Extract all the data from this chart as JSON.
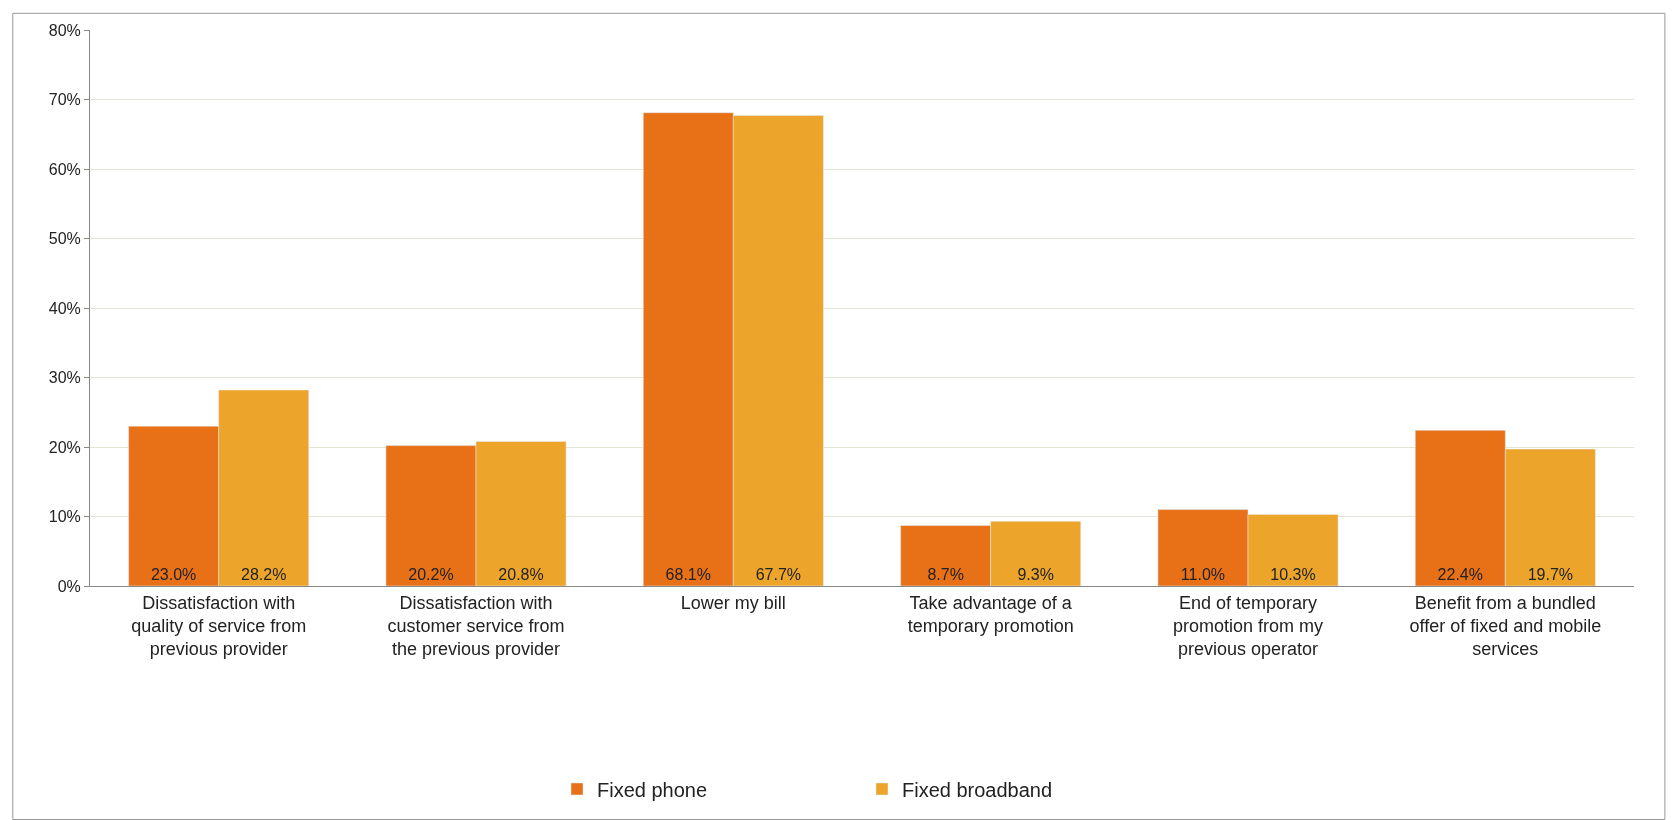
{
  "chart_data": {
    "type": "bar",
    "categories": [
      "Dissatisfaction with\nquality of service from\nprevious provider",
      "Dissatisfaction with\ncustomer service from\nthe previous provider",
      "Lower my bill",
      "Take advantage of a\ntemporary promotion",
      "End of temporary\npromotion from my\nprevious operator",
      "Benefit from a bundled\noffer of fixed and mobile\nservices"
    ],
    "series": [
      {
        "name": "Fixed phone",
        "color": "#e87118",
        "values": [
          23.0,
          20.2,
          68.1,
          8.7,
          11.0,
          22.4
        ],
        "value_labels": [
          "23.0%",
          "20.2%",
          "68.1%",
          "8.7%",
          "11.0%",
          "22.4%"
        ]
      },
      {
        "name": "Fixed broadband",
        "color": "#eca52a",
        "values": [
          28.2,
          20.8,
          67.7,
          9.3,
          10.3,
          19.7
        ],
        "value_labels": [
          "28.2%",
          "20.8%",
          "67.7%",
          "9.3%",
          "10.3%",
          "19.7%"
        ]
      }
    ],
    "ylim": [
      0,
      80
    ],
    "yticks": [
      {
        "value": 0,
        "label": "0%"
      },
      {
        "value": 10,
        "label": "10%"
      },
      {
        "value": 20,
        "label": "20%"
      },
      {
        "value": 30,
        "label": "30%"
      },
      {
        "value": 40,
        "label": "40%"
      },
      {
        "value": 50,
        "label": "50%"
      },
      {
        "value": 60,
        "label": "60%"
      },
      {
        "value": 70,
        "label": "70%"
      },
      {
        "value": 80,
        "label": "80%"
      }
    ],
    "grid": "y",
    "legend": "bottom"
  }
}
